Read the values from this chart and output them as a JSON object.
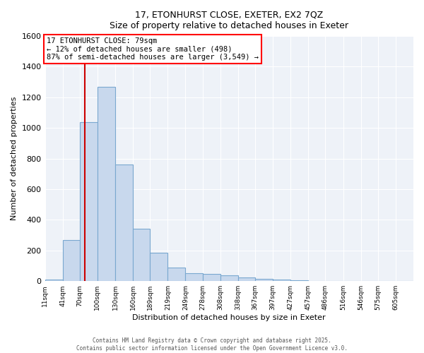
{
  "title_line1": "17, ETONHURST CLOSE, EXETER, EX2 7QZ",
  "title_line2": "Size of property relative to detached houses in Exeter",
  "xlabel": "Distribution of detached houses by size in Exeter",
  "ylabel": "Number of detached properties",
  "annotation_title": "17 ETONHURST CLOSE: 79sqm",
  "annotation_line2": "← 12% of detached houses are smaller (498)",
  "annotation_line3": "87% of semi-detached houses are larger (3,549) →",
  "property_size": 79,
  "bar_color": "#c8d8ed",
  "bar_edge_color": "#7aa8d0",
  "vline_color": "#cc0000",
  "annotation_box_color": "red",
  "annotation_box_fill": "white",
  "plot_bg_color": "#eef2f8",
  "background_color": "white",
  "grid_color": "#ffffff",
  "categories": [
    "11sqm",
    "41sqm",
    "70sqm",
    "100sqm",
    "130sqm",
    "160sqm",
    "189sqm",
    "219sqm",
    "249sqm",
    "278sqm",
    "308sqm",
    "338sqm",
    "367sqm",
    "397sqm",
    "427sqm",
    "457sqm",
    "486sqm",
    "516sqm",
    "546sqm",
    "575sqm",
    "605sqm"
  ],
  "bin_edges": [
    11,
    41,
    70,
    100,
    130,
    160,
    189,
    219,
    249,
    278,
    308,
    338,
    367,
    397,
    427,
    457,
    486,
    516,
    546,
    575,
    605
  ],
  "values": [
    10,
    270,
    1040,
    1270,
    760,
    340,
    185,
    90,
    50,
    45,
    38,
    25,
    15,
    8,
    5,
    3,
    2,
    1,
    1,
    0,
    0
  ],
  "ylim": [
    0,
    1600
  ],
  "yticks": [
    0,
    200,
    400,
    600,
    800,
    1000,
    1200,
    1400,
    1600
  ],
  "footer_line1": "Contains HM Land Registry data © Crown copyright and database right 2025.",
  "footer_line2": "Contains public sector information licensed under the Open Government Licence v3.0."
}
